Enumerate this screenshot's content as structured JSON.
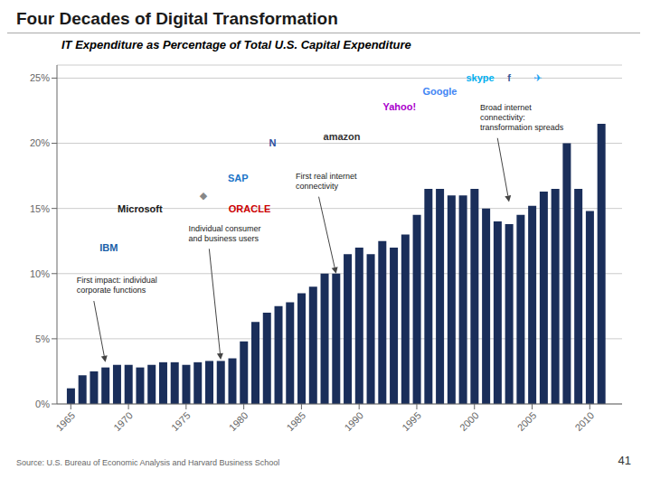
{
  "chart_data": {
    "type": "bar",
    "title": "Four Decades of Digital Transformation",
    "subtitle": "IT Expenditure as Percentage of Total U.S. Capital Expenditure",
    "source": "Source: U.S. Bureau of Economic Analysis and Harvard Business School",
    "page_number": "41",
    "color": "#1a2e5a",
    "x": [
      1965,
      1966,
      1967,
      1968,
      1969,
      1970,
      1971,
      1972,
      1973,
      1974,
      1975,
      1976,
      1977,
      1978,
      1979,
      1980,
      1981,
      1982,
      1983,
      1984,
      1985,
      1986,
      1987,
      1988,
      1989,
      1990,
      1991,
      1992,
      1993,
      1994,
      1995,
      1996,
      1997,
      1998,
      1999,
      2000,
      2001,
      2002,
      2003,
      2004,
      2005,
      2006,
      2007,
      2008,
      2009,
      2010,
      2011
    ],
    "values": [
      1.2,
      2.2,
      2.5,
      2.8,
      3.0,
      3.0,
      2.8,
      3.0,
      3.2,
      3.2,
      3.0,
      3.2,
      3.3,
      3.3,
      3.5,
      4.8,
      6.3,
      7.0,
      7.5,
      7.8,
      8.5,
      9.0,
      10.0,
      10.0,
      11.5,
      12.0,
      11.5,
      12.5,
      12.0,
      13.0,
      14.5,
      16.5,
      16.5,
      16.0,
      16.0,
      16.5,
      15.0,
      14.0,
      13.8,
      14.5,
      15.2,
      16.3,
      16.5,
      20.0,
      16.5,
      14.8,
      21.5
    ],
    "xlim": [
      1963.8,
      2012.8
    ],
    "xticks": [
      1965,
      1970,
      1975,
      1980,
      1985,
      1990,
      1995,
      2000,
      2005,
      2010
    ],
    "ylim": [
      0,
      26
    ],
    "yticks": [
      {
        "value": 0,
        "label": "0%"
      },
      {
        "value": 5,
        "label": "5%"
      },
      {
        "value": 10,
        "label": "10%"
      },
      {
        "value": 15,
        "label": "15%"
      },
      {
        "value": 20,
        "label": "20%"
      },
      {
        "value": 25,
        "label": "25%"
      }
    ],
    "grid": true,
    "annotations": [
      {
        "text": "First impact:  individual\ncorporate functions"
      },
      {
        "text": "Individual consumer\nand business users"
      },
      {
        "text": "First real internet\nconnectivity"
      },
      {
        "text": "Broad internet\nconnectivity:\ntransformation spreads"
      },
      {
        "text": "IBM",
        "color": "#1a5fa8"
      },
      {
        "text": "Microsoft",
        "color": "#1a1a1a"
      },
      {
        "text": "◆",
        "color": "#888888"
      },
      {
        "text": "SAP",
        "color": "#1b74c8"
      },
      {
        "text": "N",
        "color": "#2a4fa0"
      },
      {
        "text": "ORACLE",
        "color": "#cc0000"
      },
      {
        "text": "amazon",
        "color": "#333333"
      },
      {
        "text": "Yahoo!",
        "color": "#aa00cc"
      },
      {
        "text": "Google",
        "color": "#4285f4"
      },
      {
        "text": "skype",
        "color": "#00aff0"
      },
      {
        "text": "f",
        "color": "#3b5998"
      },
      {
        "text": "✈",
        "color": "#1da1f2"
      }
    ]
  }
}
